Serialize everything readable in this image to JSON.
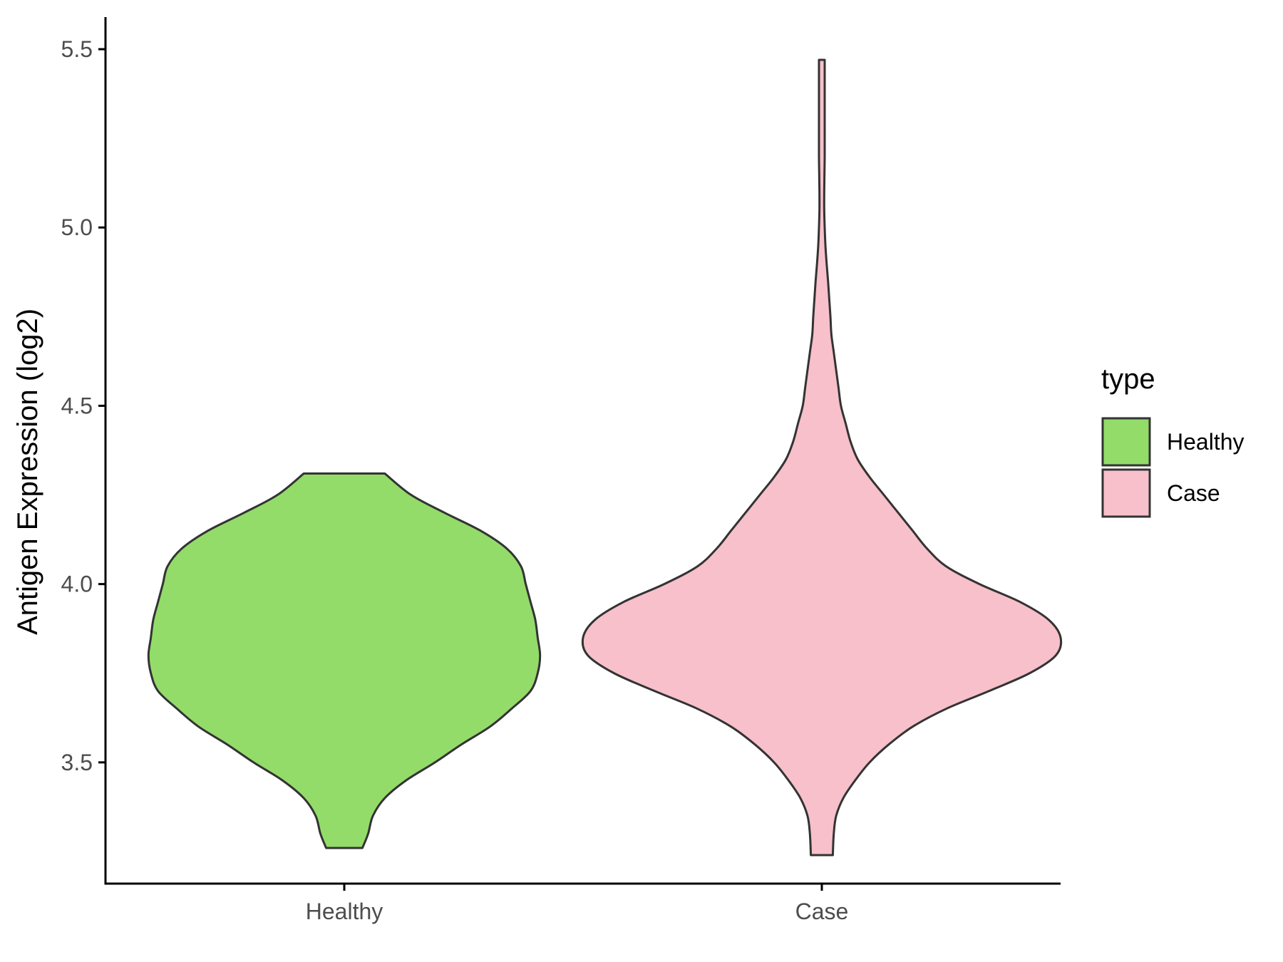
{
  "chart_data": {
    "type": "violin",
    "xlabel": "",
    "ylabel": "Antigen Expression (log2)",
    "categories": [
      "Healthy",
      "Case"
    ],
    "ylim": [
      3.16,
      5.59
    ],
    "yticks": [
      3.5,
      4.0,
      4.5,
      5.0,
      5.5
    ],
    "ytick_labels": [
      "3.5",
      "4.0",
      "4.5",
      "5.0",
      "5.5"
    ],
    "grid": false,
    "legend": {
      "title": "type",
      "position": "right",
      "entries": [
        {
          "label": "Healthy",
          "color": "#93dc6a"
        },
        {
          "label": "Case",
          "color": "#f7c0cb"
        }
      ]
    },
    "outline_color": "#333333",
    "series": [
      {
        "name": "Healthy",
        "color": "#93dc6a",
        "y_range": [
          3.26,
          4.31
        ],
        "density_profile": [
          [
            3.26,
            0.076
          ],
          [
            3.3,
            0.1
          ],
          [
            3.35,
            0.12
          ],
          [
            3.4,
            0.17
          ],
          [
            3.45,
            0.26
          ],
          [
            3.5,
            0.38
          ],
          [
            3.55,
            0.49
          ],
          [
            3.6,
            0.61
          ],
          [
            3.65,
            0.7
          ],
          [
            3.7,
            0.78
          ],
          [
            3.75,
            0.81
          ],
          [
            3.8,
            0.82
          ],
          [
            3.85,
            0.81
          ],
          [
            3.9,
            0.8
          ],
          [
            3.95,
            0.78
          ],
          [
            4.0,
            0.76
          ],
          [
            4.05,
            0.74
          ],
          [
            4.1,
            0.68
          ],
          [
            4.15,
            0.57
          ],
          [
            4.2,
            0.42
          ],
          [
            4.25,
            0.28
          ],
          [
            4.31,
            0.17
          ]
        ]
      },
      {
        "name": "Case",
        "color": "#f7c0cb",
        "y_range": [
          3.24,
          5.47
        ],
        "density_profile": [
          [
            3.24,
            0.046
          ],
          [
            3.3,
            0.05
          ],
          [
            3.35,
            0.06
          ],
          [
            3.4,
            0.09
          ],
          [
            3.45,
            0.14
          ],
          [
            3.5,
            0.2
          ],
          [
            3.55,
            0.28
          ],
          [
            3.6,
            0.38
          ],
          [
            3.65,
            0.52
          ],
          [
            3.7,
            0.7
          ],
          [
            3.75,
            0.87
          ],
          [
            3.8,
            0.98
          ],
          [
            3.85,
            1.0
          ],
          [
            3.9,
            0.95
          ],
          [
            3.95,
            0.83
          ],
          [
            4.0,
            0.66
          ],
          [
            4.05,
            0.52
          ],
          [
            4.1,
            0.44
          ],
          [
            4.15,
            0.38
          ],
          [
            4.2,
            0.32
          ],
          [
            4.25,
            0.26
          ],
          [
            4.3,
            0.2
          ],
          [
            4.35,
            0.15
          ],
          [
            4.4,
            0.12
          ],
          [
            4.45,
            0.1
          ],
          [
            4.5,
            0.08
          ],
          [
            4.55,
            0.07
          ],
          [
            4.6,
            0.06
          ],
          [
            4.65,
            0.05
          ],
          [
            4.7,
            0.04
          ],
          [
            4.75,
            0.036
          ],
          [
            4.8,
            0.031
          ],
          [
            4.85,
            0.026
          ],
          [
            4.9,
            0.02
          ],
          [
            4.95,
            0.015
          ],
          [
            5.0,
            0.012
          ],
          [
            5.05,
            0.01
          ],
          [
            5.1,
            0.01
          ],
          [
            5.15,
            0.011
          ],
          [
            5.2,
            0.012
          ],
          [
            5.3,
            0.012
          ],
          [
            5.4,
            0.012
          ],
          [
            5.47,
            0.012
          ]
        ]
      }
    ]
  }
}
